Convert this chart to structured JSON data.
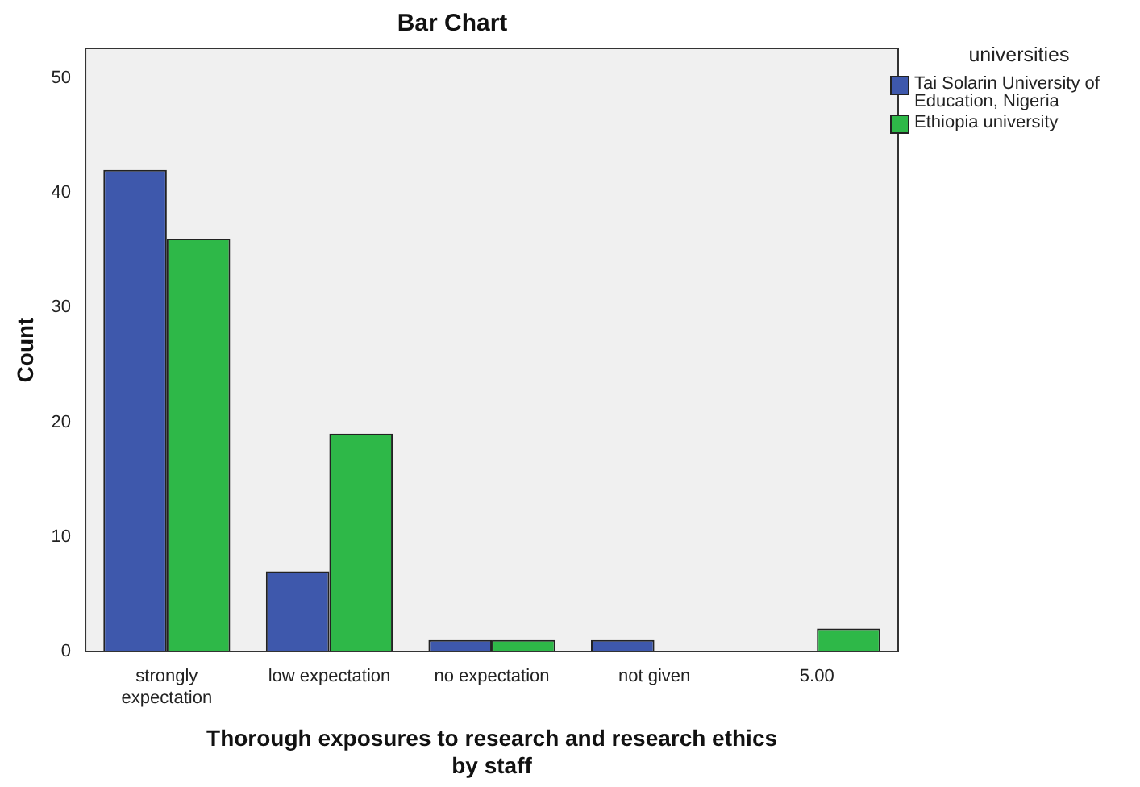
{
  "chart_data": {
    "type": "bar",
    "title": "Bar Chart",
    "xlabel": "Thorough exposures to research and research ethics by staff",
    "ylabel": "Count",
    "legend_title": "universities",
    "legend": "right",
    "categories": [
      "strongly expectation",
      "low expectation",
      "no expectation",
      "not given",
      "5.00"
    ],
    "series": [
      {
        "name": "Tai Solarin University of Education, Nigeria",
        "color": "#3e58ac",
        "values": [
          42,
          7,
          1,
          1,
          null
        ]
      },
      {
        "name": "Ethiopia university",
        "color": "#2eb848",
        "values": [
          36,
          19,
          1,
          null,
          2
        ]
      }
    ],
    "ylim": [
      0,
      52.6
    ],
    "yticks": [
      0,
      10,
      20,
      30,
      40,
      50
    ],
    "grid": false
  }
}
